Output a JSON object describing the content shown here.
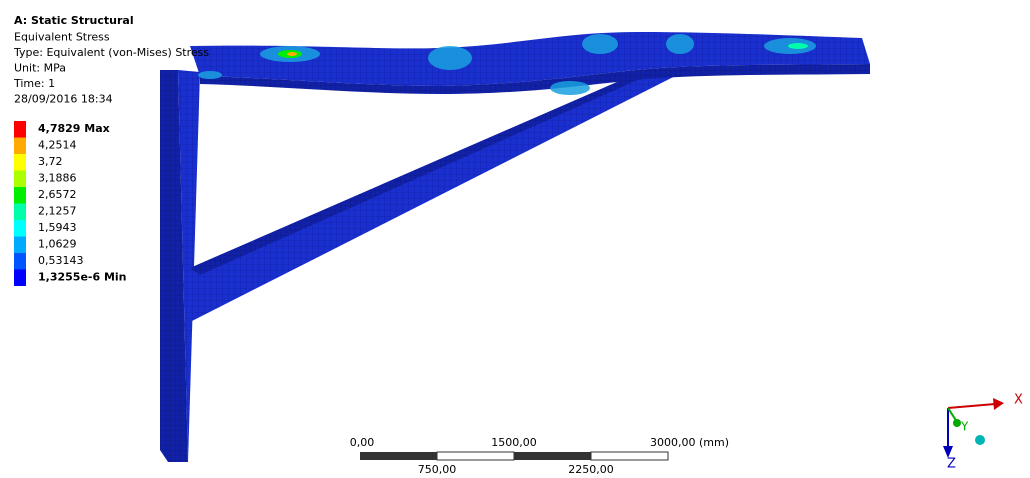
{
  "header": {
    "title": "A: Static Structural",
    "lines": [
      "Equivalent Stress",
      "Type: Equivalent (von-Mises) Stress",
      "Unit: MPa",
      "Time: 1",
      "28/09/2016 18:34"
    ]
  },
  "legend": {
    "items": [
      {
        "label": "4,7829 Max",
        "color": "#ff0000"
      },
      {
        "label": "4,2514",
        "color": "#ffaa00"
      },
      {
        "label": "3,72",
        "color": "#ffff00"
      },
      {
        "label": "3,1886",
        "color": "#aaff00"
      },
      {
        "label": "2,6572",
        "color": "#00ee00"
      },
      {
        "label": "2,1257",
        "color": "#00ffaa"
      },
      {
        "label": "1,5943",
        "color": "#00ffff"
      },
      {
        "label": "1,0629",
        "color": "#00aaff"
      },
      {
        "label": "0,53143",
        "color": "#0055ff"
      },
      {
        "label": "1,3255e-6 Min",
        "color": "#0000ff"
      }
    ]
  },
  "scale": {
    "top_labels": [
      "0,00",
      "1500,00",
      "3000,00 (mm)"
    ],
    "bottom_labels": [
      "750,00",
      "2250,00"
    ]
  },
  "triad": {
    "x": "X",
    "y": "Y",
    "z": "Z"
  }
}
